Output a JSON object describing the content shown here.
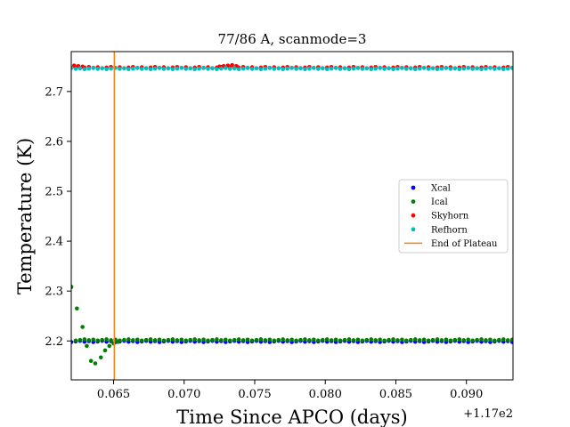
{
  "chart_data": {
    "type": "scatter",
    "title": "77/86 A, scanmode=3",
    "xlabel": "Time Since APCO (days)",
    "ylabel": "Temperature (K)",
    "x_offset_label": "+1.17e2",
    "xlim": [
      117.062,
      117.0933
    ],
    "ylim": [
      2.122,
      2.78
    ],
    "xticks": [
      117.065,
      117.07,
      117.075,
      117.08,
      117.085,
      117.09
    ],
    "xtick_labels": [
      "0.065",
      "0.070",
      "0.075",
      "0.080",
      "0.085",
      "0.090"
    ],
    "yticks": [
      2.2,
      2.3,
      2.4,
      2.5,
      2.6,
      2.7
    ],
    "ytick_labels": [
      "2.2",
      "2.3",
      "2.4",
      "2.5",
      "2.6",
      "2.7"
    ],
    "grid": false,
    "legend_position": "center-right",
    "marker_start": 117.062,
    "marker_step": 0.0003125,
    "marker_end": 117.0933,
    "series": [
      {
        "name": "Xcal",
        "color": "#0000ff",
        "kind": "points",
        "level": 2.199,
        "points": []
      },
      {
        "name": "Ical",
        "color": "#008000",
        "kind": "points",
        "level": 2.202,
        "points": [
          [
            117.062,
            2.308
          ],
          [
            117.0624,
            2.265
          ],
          [
            117.0628,
            2.228
          ],
          [
            117.0631,
            2.19
          ],
          [
            117.0634,
            2.16
          ],
          [
            117.0637,
            2.155
          ],
          [
            117.0641,
            2.167
          ],
          [
            117.0644,
            2.181
          ],
          [
            117.0647,
            2.19
          ],
          [
            117.065,
            2.195
          ],
          [
            117.0653,
            2.198
          ]
        ]
      },
      {
        "name": "Skyhorn",
        "color": "#ff0000",
        "kind": "points",
        "level": 2.748,
        "points": [
          [
            117.0622,
            2.752
          ],
          [
            117.0625,
            2.751
          ],
          [
            117.0628,
            2.75
          ],
          [
            117.0725,
            2.75
          ],
          [
            117.0728,
            2.751
          ],
          [
            117.0731,
            2.752
          ],
          [
            117.0734,
            2.753
          ],
          [
            117.0737,
            2.751
          ]
        ]
      },
      {
        "name": "Refhorn",
        "color": "#00bfbf",
        "kind": "points",
        "level": 2.746,
        "points": []
      },
      {
        "name": "End of Plateau",
        "color": "#ff7f0e",
        "kind": "vline",
        "x": 117.06505
      }
    ]
  }
}
